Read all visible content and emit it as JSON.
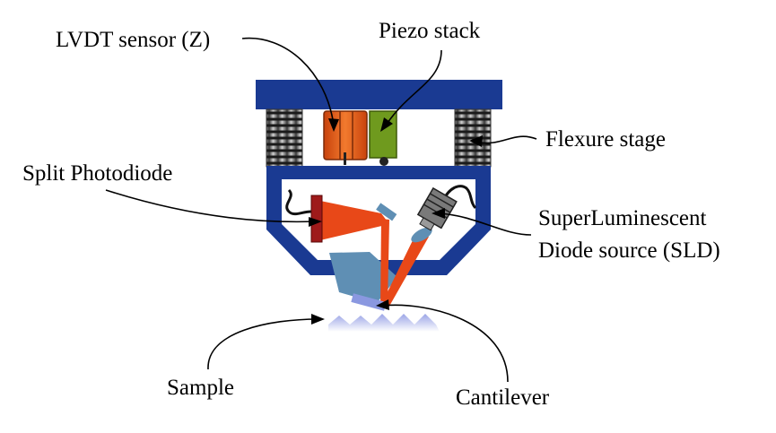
{
  "labels": {
    "lvdt": "LVDT sensor (Z)",
    "piezo": "Piezo stack",
    "flexure": "Flexure stage",
    "photodiode": "Split Photodiode",
    "sld_line1": "SuperLuminescent",
    "sld_line2": "Diode source (SLD)",
    "sample": "Sample",
    "cantilever": "Cantilever"
  },
  "colors": {
    "frame": "#1a3a92",
    "spring": "#6a6a6a",
    "lvdt": "#e0601a",
    "piezo": "#6f9a1e",
    "beam": "#e84818",
    "photodiode": "#9e1a1a",
    "mirror": "#5f8fb4",
    "sample": "#c8ccf0",
    "cantilever": "#8a98e0"
  }
}
